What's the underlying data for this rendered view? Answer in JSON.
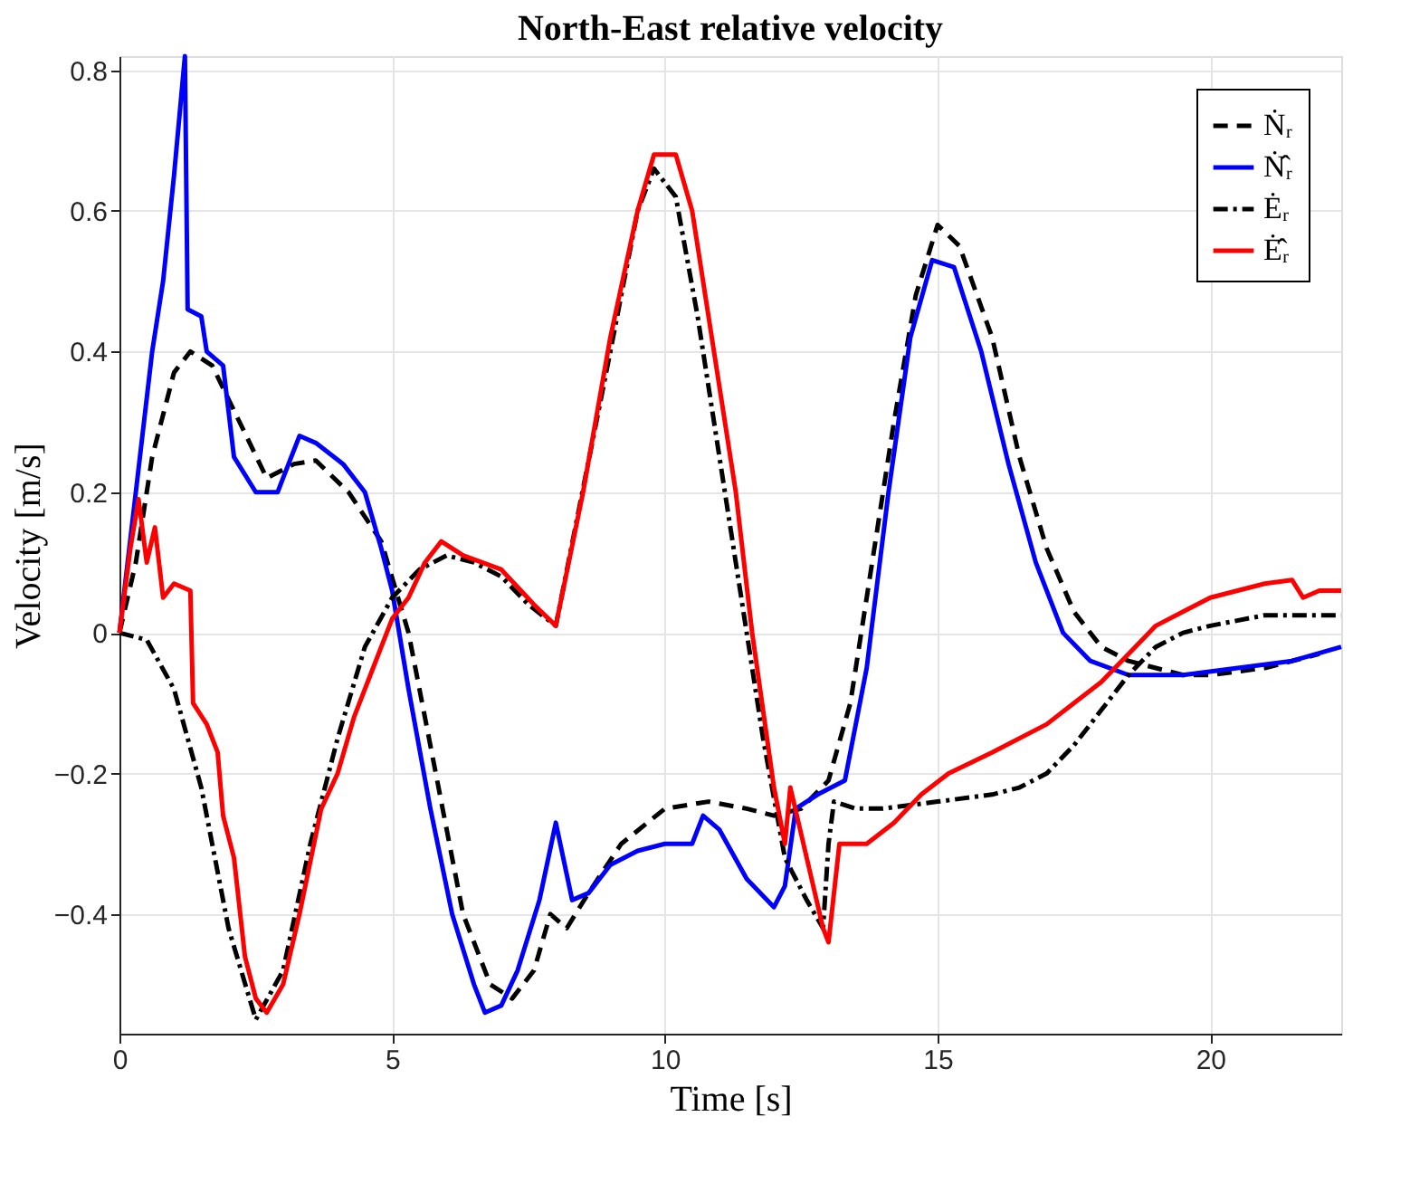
{
  "chart_data": {
    "type": "line",
    "title": "North-East relative velocity",
    "xlabel": "Time [s]",
    "ylabel": "Velocity [m/s]",
    "xlim": [
      0,
      22.4
    ],
    "ylim": [
      -0.57,
      0.82
    ],
    "xticks": [
      0,
      5,
      10,
      15,
      20
    ],
    "yticks": [
      -0.4,
      -0.2,
      0,
      0.2,
      0.4,
      0.6,
      0.8
    ],
    "grid": true,
    "legend": "top right",
    "marker": "none",
    "series": [
      {
        "name": "Ṅᵣ",
        "color": "#000000",
        "line_style": "dashed",
        "x": [
          0,
          0.3,
          0.6,
          1,
          1.3,
          1.7,
          2.2,
          2.7,
          3.2,
          3.6,
          4.2,
          4.8,
          5.3,
          5.8,
          6.3,
          6.8,
          7.2,
          7.6,
          7.9,
          8.2,
          8.6,
          9.2,
          10,
          10.8,
          11.5,
          12,
          12.5,
          13,
          13.4,
          13.8,
          14.2,
          14.6,
          15,
          15.4,
          16,
          16.5,
          17,
          17.5,
          18,
          18.5,
          19,
          19.5,
          20,
          21,
          22
        ],
        "values": [
          0,
          0.1,
          0.25,
          0.37,
          0.4,
          0.38,
          0.3,
          0.22,
          0.24,
          0.245,
          0.2,
          0.13,
          0,
          -0.2,
          -0.4,
          -0.5,
          -0.52,
          -0.48,
          -0.4,
          -0.42,
          -0.37,
          -0.3,
          -0.25,
          -0.24,
          -0.25,
          -0.26,
          -0.25,
          -0.21,
          -0.1,
          0.1,
          0.3,
          0.48,
          0.58,
          0.55,
          0.42,
          0.25,
          0.12,
          0.03,
          -0.02,
          -0.04,
          -0.05,
          -0.06,
          -0.06,
          -0.05,
          -0.03
        ]
      },
      {
        "name": "Ṅ̂ᵣ",
        "color": "#0000ff",
        "line_style": "solid",
        "x": [
          0,
          0.3,
          0.6,
          0.8,
          1,
          1.2,
          1.25,
          1.5,
          1.6,
          1.9,
          2.1,
          2.5,
          2.9,
          3,
          3.3,
          3.6,
          4.1,
          4.5,
          4.8,
          5,
          5.3,
          5.7,
          6.1,
          6.5,
          6.7,
          7,
          7.3,
          7.7,
          8,
          8.3,
          8.6,
          9,
          9.5,
          10,
          10.5,
          10.7,
          11,
          11.5,
          12,
          12.2,
          12.4,
          12.8,
          13.3,
          13.7,
          14.1,
          14.5,
          14.9,
          15.3,
          15.8,
          16.3,
          16.8,
          17.3,
          17.8,
          18.5,
          19.5,
          20.5,
          21.5,
          22.4
        ],
        "values": [
          0,
          0.2,
          0.4,
          0.5,
          0.65,
          0.82,
          0.46,
          0.45,
          0.4,
          0.38,
          0.25,
          0.2,
          0.2,
          0.22,
          0.28,
          0.27,
          0.24,
          0.2,
          0.12,
          0.06,
          -0.08,
          -0.25,
          -0.4,
          -0.5,
          -0.54,
          -0.53,
          -0.48,
          -0.38,
          -0.27,
          -0.38,
          -0.37,
          -0.33,
          -0.31,
          -0.3,
          -0.3,
          -0.26,
          -0.28,
          -0.35,
          -0.39,
          -0.36,
          -0.25,
          -0.23,
          -0.21,
          -0.05,
          0.2,
          0.42,
          0.53,
          0.52,
          0.4,
          0.24,
          0.1,
          0,
          -0.04,
          -0.06,
          -0.06,
          -0.05,
          -0.04,
          -0.02
        ]
      },
      {
        "name": "Ėᵣ",
        "color": "#000000",
        "line_style": "dashdot",
        "x": [
          0,
          0.5,
          1,
          1.5,
          2,
          2.5,
          3,
          3.5,
          4,
          4.5,
          5,
          5.5,
          6,
          6.5,
          7,
          7.5,
          8,
          9,
          9.5,
          9.8,
          10.2,
          10.6,
          11,
          11.4,
          11.8,
          12.2,
          12.6,
          12.9,
          13,
          13.1,
          13.5,
          14,
          15,
          16,
          16.5,
          17,
          17.5,
          18,
          18.5,
          19,
          19.5,
          20,
          21,
          22.4
        ],
        "values": [
          0,
          -0.01,
          -0.08,
          -0.22,
          -0.42,
          -0.55,
          -0.48,
          -0.3,
          -0.15,
          -0.02,
          0.05,
          0.09,
          0.11,
          0.1,
          0.08,
          0.04,
          0.01,
          0.4,
          0.6,
          0.66,
          0.62,
          0.45,
          0.25,
          0.05,
          -0.15,
          -0.32,
          -0.38,
          -0.42,
          -0.3,
          -0.24,
          -0.25,
          -0.25,
          -0.24,
          -0.23,
          -0.22,
          -0.2,
          -0.16,
          -0.11,
          -0.06,
          -0.02,
          0,
          0.01,
          0.025,
          0.025
        ]
      },
      {
        "name": "Ė̂ᵣ",
        "color": "#ff0000",
        "line_style": "solid",
        "x": [
          0,
          0.2,
          0.35,
          0.5,
          0.65,
          0.8,
          1,
          1.3,
          1.35,
          1.6,
          1.8,
          1.9,
          2.1,
          2.3,
          2.5,
          2.7,
          3,
          3.3,
          3.7,
          4,
          4.3,
          4.6,
          4.9,
          5,
          5.3,
          5.6,
          5.9,
          6.3,
          7,
          7.6,
          8,
          8.5,
          9,
          9.5,
          9.8,
          10.2,
          10.5,
          10.9,
          11.3,
          11.6,
          12,
          12.2,
          12.3,
          12.6,
          12.9,
          13,
          13.2,
          13.7,
          14.2,
          14.7,
          15.2,
          16,
          17,
          17.5,
          18,
          18.5,
          19,
          19.5,
          20,
          21,
          21.5,
          21.7,
          22,
          22.4
        ],
        "values": [
          0,
          0.12,
          0.19,
          0.1,
          0.15,
          0.05,
          0.07,
          0.06,
          -0.1,
          -0.13,
          -0.17,
          -0.26,
          -0.32,
          -0.46,
          -0.52,
          -0.54,
          -0.5,
          -0.4,
          -0.25,
          -0.2,
          -0.12,
          -0.06,
          0,
          0.02,
          0.05,
          0.1,
          0.13,
          0.11,
          0.09,
          0.04,
          0.01,
          0.2,
          0.42,
          0.6,
          0.68,
          0.68,
          0.6,
          0.4,
          0.2,
          0,
          -0.22,
          -0.3,
          -0.22,
          -0.32,
          -0.42,
          -0.44,
          -0.3,
          -0.3,
          -0.27,
          -0.23,
          -0.2,
          -0.17,
          -0.13,
          -0.1,
          -0.07,
          -0.03,
          0.01,
          0.03,
          0.05,
          0.07,
          0.075,
          0.05,
          0.06,
          0.06
        ]
      }
    ]
  }
}
